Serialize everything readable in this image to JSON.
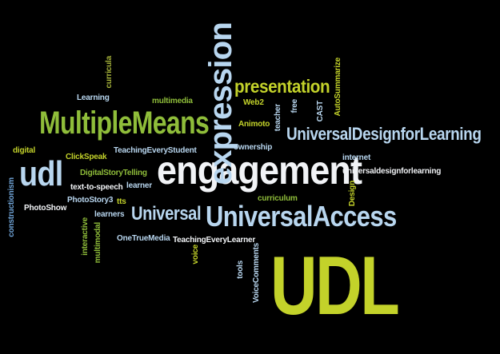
{
  "words": {
    "udl_big": "UDL",
    "engagement": "engagement",
    "expression": "expression",
    "multiple_means": "MultipleMeans",
    "universal_access": "UniversalAccess",
    "udl_small": "udl",
    "presentation": "presentation",
    "udl_phrase": "UniversalDesignforLearning",
    "universal": "Universal",
    "curricula": "curricula",
    "learning": "Learning",
    "multimedia_top": "multimedia",
    "web2": "Web2",
    "free": "free",
    "cast": "CAST",
    "autosummarize": "AutoSummarize",
    "teacher": "teacher",
    "animoto": "Animoto",
    "ownership": "ownership",
    "internet": "internet",
    "universaldesignforlearning": "universaldesignforlearning",
    "design": "Design",
    "curriculum": "curriculum",
    "digital": "digital",
    "clickspeak": "ClickSpeak",
    "teaching_every_student": "TeachingEveryStudent",
    "digital_story_telling": "DigitalStoryTelling",
    "text_to_speech": "text-to-speech",
    "learner": "learner",
    "photostory3": "PhotoStory3",
    "tts": "tts",
    "photoshow": "PhotoShow",
    "learners": "learners",
    "constructionism": "constructionism",
    "interactive": "interactive",
    "multimodal": "multimodal",
    "one_true_media": "OneTrueMedia",
    "voice": "voice",
    "teaching_every_learner": "TeachingEveryLearner",
    "tools": "tools",
    "voice_comments": "VoiceComments"
  },
  "colors": {
    "background": "#000000",
    "green": "#8fbd3a",
    "lime": "#c3d22a",
    "light_blue": "#b8d6ef",
    "white": "#f1f3f6",
    "olive": "#a8b53b",
    "blue": "#6fa3d6"
  }
}
